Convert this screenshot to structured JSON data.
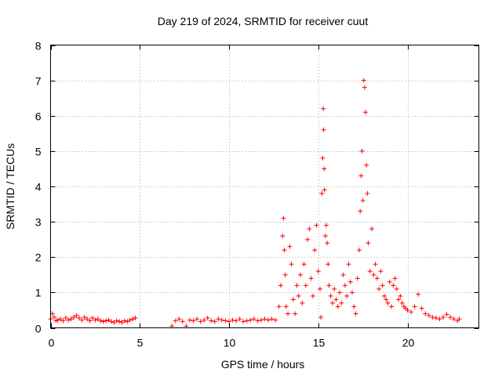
{
  "chart_data": {
    "type": "scatter",
    "title": "Day 219 of 2024, SRMTID for receiver cuut",
    "xlabel": "GPS time / hours",
    "ylabel": "SRMTID / TECUs",
    "xlim": [
      0,
      24
    ],
    "ylim": [
      0,
      8
    ],
    "xticks": [
      0,
      5,
      10,
      15,
      20
    ],
    "xtick_labels": [
      "0",
      "5",
      "10",
      "15",
      "20"
    ],
    "yticks": [
      0,
      1,
      2,
      3,
      4,
      5,
      6,
      7,
      8
    ],
    "ytick_labels": [
      "0",
      "1",
      "2",
      "3",
      "4",
      "5",
      "6",
      "7",
      "8"
    ],
    "grid": true,
    "marker": "plus",
    "series": [
      {
        "name": "SRMTID",
        "color": "#ff0000",
        "x": [
          0.0,
          0.1,
          0.2,
          0.3,
          0.4,
          0.55,
          0.7,
          0.85,
          1.0,
          1.15,
          1.3,
          1.45,
          1.6,
          1.75,
          1.9,
          2.05,
          2.2,
          2.35,
          2.5,
          2.65,
          2.8,
          2.95,
          3.1,
          3.25,
          3.4,
          3.55,
          3.7,
          3.85,
          4.0,
          4.15,
          4.3,
          4.45,
          4.6,
          4.75,
          6.8,
          7.0,
          7.2,
          7.4,
          7.6,
          7.8,
          8.0,
          8.2,
          8.4,
          8.6,
          8.8,
          9.0,
          9.2,
          9.4,
          9.6,
          9.8,
          10.0,
          10.2,
          10.4,
          10.6,
          10.8,
          11.0,
          11.2,
          11.4,
          11.6,
          11.8,
          12.0,
          12.2,
          12.4,
          12.6,
          12.8,
          12.9,
          13.0,
          13.05,
          13.1,
          13.15,
          13.2,
          13.3,
          13.4,
          13.5,
          13.6,
          13.7,
          13.8,
          13.9,
          14.0,
          14.1,
          14.2,
          14.3,
          14.4,
          14.5,
          14.6,
          14.7,
          14.8,
          14.9,
          15.0,
          15.1,
          15.15,
          15.2,
          15.25,
          15.28,
          15.3,
          15.33,
          15.35,
          15.4,
          15.45,
          15.5,
          15.55,
          15.6,
          15.7,
          15.8,
          15.9,
          16.0,
          16.1,
          16.2,
          16.3,
          16.4,
          16.5,
          16.6,
          16.7,
          16.8,
          16.9,
          17.0,
          17.1,
          17.2,
          17.3,
          17.35,
          17.4,
          17.45,
          17.5,
          17.55,
          17.6,
          17.65,
          17.7,
          17.75,
          17.8,
          17.9,
          18.0,
          18.1,
          18.2,
          18.3,
          18.4,
          18.5,
          18.6,
          18.7,
          18.8,
          18.9,
          19.0,
          19.1,
          19.2,
          19.3,
          19.4,
          19.5,
          19.6,
          19.7,
          19.8,
          19.9,
          20.0,
          20.2,
          20.4,
          20.6,
          20.8,
          21.0,
          21.2,
          21.4,
          21.6,
          21.8,
          22.0,
          22.2,
          22.4,
          22.6,
          22.8,
          22.9
        ],
        "y": [
          0.25,
          0.4,
          0.3,
          0.2,
          0.22,
          0.25,
          0.2,
          0.28,
          0.22,
          0.25,
          0.3,
          0.35,
          0.28,
          0.22,
          0.3,
          0.25,
          0.2,
          0.28,
          0.22,
          0.25,
          0.2,
          0.18,
          0.2,
          0.22,
          0.18,
          0.15,
          0.2,
          0.18,
          0.15,
          0.2,
          0.18,
          0.22,
          0.25,
          0.28,
          0.05,
          0.2,
          0.25,
          0.18,
          0.05,
          0.22,
          0.2,
          0.25,
          0.18,
          0.22,
          0.28,
          0.2,
          0.18,
          0.25,
          0.22,
          0.2,
          0.18,
          0.22,
          0.2,
          0.25,
          0.18,
          0.2,
          0.22,
          0.25,
          0.2,
          0.22,
          0.25,
          0.22,
          0.25,
          0.22,
          0.6,
          1.2,
          2.6,
          3.1,
          2.2,
          1.5,
          0.6,
          0.4,
          2.3,
          1.8,
          0.8,
          0.4,
          1.2,
          0.9,
          1.5,
          0.7,
          1.8,
          1.2,
          2.5,
          2.8,
          1.4,
          0.9,
          2.2,
          2.9,
          1.6,
          1.1,
          0.3,
          3.8,
          4.8,
          6.2,
          5.6,
          4.5,
          3.9,
          2.6,
          2.9,
          2.4,
          1.8,
          1.2,
          0.9,
          0.7,
          1.1,
          0.8,
          0.6,
          1.0,
          0.7,
          1.5,
          1.2,
          0.9,
          1.8,
          1.3,
          1.0,
          0.6,
          0.4,
          1.4,
          2.2,
          3.3,
          4.3,
          5.0,
          3.6,
          7.0,
          6.8,
          6.1,
          4.6,
          3.8,
          2.4,
          1.6,
          2.8,
          1.5,
          1.8,
          1.4,
          1.1,
          1.6,
          1.2,
          0.9,
          0.8,
          0.7,
          1.3,
          0.6,
          1.2,
          1.4,
          1.1,
          0.8,
          0.9,
          0.7,
          0.6,
          0.55,
          0.5,
          0.45,
          0.6,
          0.95,
          0.55,
          0.4,
          0.35,
          0.3,
          0.28,
          0.25,
          0.3,
          0.38,
          0.3,
          0.25,
          0.2,
          0.25
        ]
      }
    ]
  }
}
